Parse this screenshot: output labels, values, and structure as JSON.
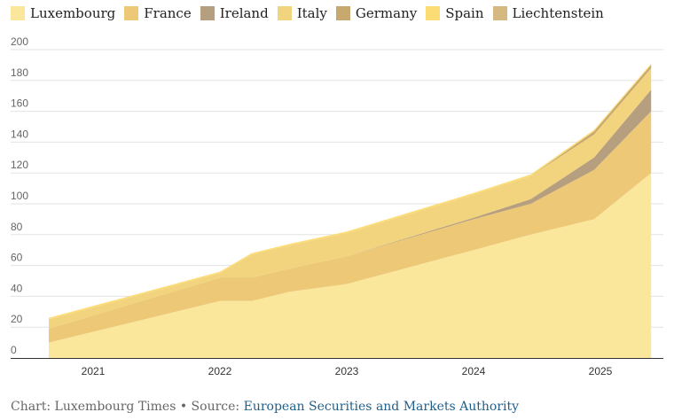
{
  "chart_data": {
    "type": "area",
    "stacked": true,
    "title": "",
    "xlabel": "",
    "ylabel": "",
    "ylim": [
      0,
      200
    ],
    "yticks": [
      0,
      20,
      40,
      60,
      80,
      100,
      120,
      140,
      160,
      180,
      200
    ],
    "xticks": [
      "2021",
      "2022",
      "2023",
      "2024",
      "2025"
    ],
    "grid": true,
    "legend_position": "top",
    "x": [
      2020.65,
      2022.0,
      2022.25,
      2022.55,
      2023.0,
      2024.0,
      2024.45,
      2024.95,
      2025.4
    ],
    "series": [
      {
        "name": "Luxembourg",
        "color": "#fbe79b",
        "values": [
          10,
          37,
          37,
          43,
          48,
          70,
          80,
          90,
          120
        ]
      },
      {
        "name": "France",
        "color": "#ecc877",
        "values": [
          9,
          15,
          15,
          15,
          18,
          20,
          20,
          32,
          40
        ]
      },
      {
        "name": "Ireland",
        "color": "#b69f7e",
        "values": [
          0,
          0,
          0,
          0,
          0,
          1,
          3,
          8,
          14
        ]
      },
      {
        "name": "Italy",
        "color": "#f1d47d",
        "values": [
          6,
          3,
          15,
          15,
          15,
          15,
          15,
          15,
          14
        ]
      },
      {
        "name": "Germany",
        "color": "#c7a86f",
        "values": [
          0,
          0,
          0,
          0,
          0,
          0,
          0,
          2,
          2
        ]
      },
      {
        "name": "Spain",
        "color": "#fcdc75",
        "values": [
          1,
          1,
          1,
          1,
          1,
          1,
          1,
          1,
          1
        ]
      },
      {
        "name": "Liechtenstein",
        "color": "#d6b980",
        "values": [
          0,
          0,
          0,
          0,
          0,
          0,
          0,
          0,
          0
        ]
      }
    ]
  },
  "footer": {
    "prefix": "Chart: Luxembourg Times • Source: ",
    "source": "European Securities and Markets Authority"
  }
}
